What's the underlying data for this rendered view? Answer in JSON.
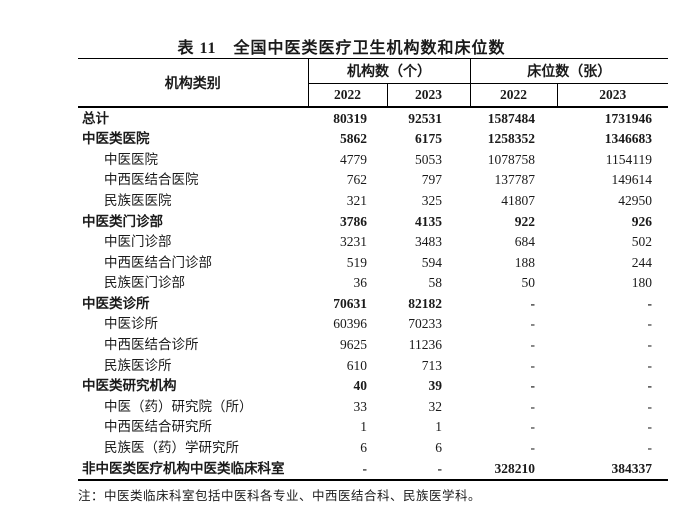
{
  "title": "表 11　全国中医类医疗卫生机构数和床位数",
  "table": {
    "header_label": "机构类别",
    "group_headers": [
      "机构数（个）",
      "床位数（张）"
    ],
    "year_headers": [
      "2022",
      "2023",
      "2022",
      "2023"
    ],
    "rows": [
      {
        "label": "总计",
        "bold": true,
        "indent": false,
        "values": [
          "80319",
          "92531",
          "1587484",
          "1731946"
        ]
      },
      {
        "label": "中医类医院",
        "bold": true,
        "indent": false,
        "values": [
          "5862",
          "6175",
          "1258352",
          "1346683"
        ]
      },
      {
        "label": "中医医院",
        "bold": false,
        "indent": true,
        "values": [
          "4779",
          "5053",
          "1078758",
          "1154119"
        ]
      },
      {
        "label": "中西医结合医院",
        "bold": false,
        "indent": true,
        "values": [
          "762",
          "797",
          "137787",
          "149614"
        ]
      },
      {
        "label": "民族医医院",
        "bold": false,
        "indent": true,
        "values": [
          "321",
          "325",
          "41807",
          "42950"
        ]
      },
      {
        "label": "中医类门诊部",
        "bold": true,
        "indent": false,
        "values": [
          "3786",
          "4135",
          "922",
          "926"
        ]
      },
      {
        "label": "中医门诊部",
        "bold": false,
        "indent": true,
        "values": [
          "3231",
          "3483",
          "684",
          "502"
        ]
      },
      {
        "label": "中西医结合门诊部",
        "bold": false,
        "indent": true,
        "values": [
          "519",
          "594",
          "188",
          "244"
        ]
      },
      {
        "label": "民族医门诊部",
        "bold": false,
        "indent": true,
        "values": [
          "36",
          "58",
          "50",
          "180"
        ]
      },
      {
        "label": "中医类诊所",
        "bold": true,
        "indent": false,
        "values": [
          "70631",
          "82182",
          "-",
          "-"
        ]
      },
      {
        "label": "中医诊所",
        "bold": false,
        "indent": true,
        "values": [
          "60396",
          "70233",
          "-",
          "-"
        ]
      },
      {
        "label": "中西医结合诊所",
        "bold": false,
        "indent": true,
        "values": [
          "9625",
          "11236",
          "-",
          "-"
        ]
      },
      {
        "label": "民族医诊所",
        "bold": false,
        "indent": true,
        "values": [
          "610",
          "713",
          "-",
          "-"
        ]
      },
      {
        "label": "中医类研究机构",
        "bold": true,
        "indent": false,
        "values": [
          "40",
          "39",
          "-",
          "-"
        ]
      },
      {
        "label": "中医（药）研究院（所）",
        "bold": false,
        "indent": true,
        "values": [
          "33",
          "32",
          "-",
          "-"
        ]
      },
      {
        "label": "中西医结合研究所",
        "bold": false,
        "indent": true,
        "values": [
          "1",
          "1",
          "-",
          "-"
        ]
      },
      {
        "label": "民族医（药）学研究所",
        "bold": false,
        "indent": true,
        "values": [
          "6",
          "6",
          "-",
          "-"
        ]
      },
      {
        "label": "非中医类医疗机构中医类临床科室",
        "bold": true,
        "indent": false,
        "values": [
          "-",
          "-",
          "328210",
          "384337"
        ]
      }
    ]
  },
  "note": "注：中医类临床科室包括中医科各专业、中西医结合科、民族医学科。",
  "colors": {
    "text": "#1a1a1a",
    "border": "#000000",
    "background": "#ffffff"
  }
}
